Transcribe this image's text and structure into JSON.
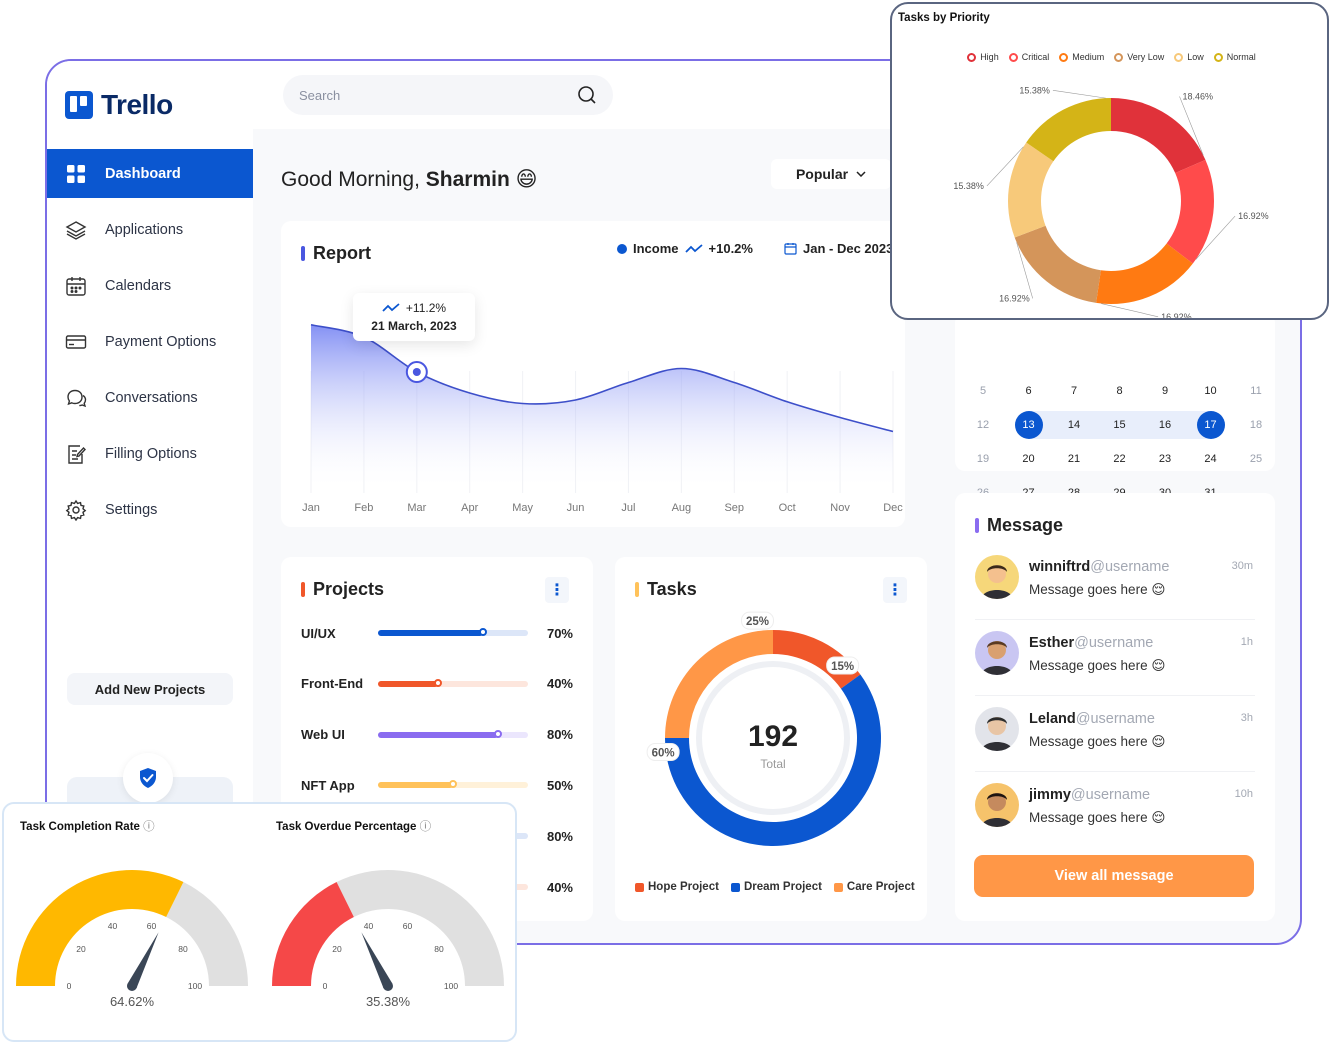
{
  "app": {
    "name": "Trello"
  },
  "sidebar": {
    "items": [
      {
        "label": "Dashboard",
        "icon": "grid-icon"
      },
      {
        "label": "Applications",
        "icon": "layers-icon"
      },
      {
        "label": "Calendars",
        "icon": "calendar-icon"
      },
      {
        "label": "Payment Options",
        "icon": "credit-card-icon"
      },
      {
        "label": "Conversations",
        "icon": "chat-icon"
      },
      {
        "label": "Filling Options",
        "icon": "edit-document-icon"
      },
      {
        "label": "Settings",
        "icon": "gear-icon"
      }
    ],
    "add_project_label": "Add New Projects"
  },
  "header": {
    "search_placeholder": "Search",
    "greeting_prefix": "Good Morning,",
    "user_name": "Sharmin",
    "greeting_emoji": "😄",
    "sort_label": "Popular"
  },
  "report": {
    "title": "Report",
    "legend_label": "Income",
    "legend_change": "+10.2%",
    "date_range": "Jan - Dec 2023",
    "tooltip_change": "+11.2%",
    "tooltip_date": "21 March, 2023",
    "chart_data": {
      "type": "area",
      "x": [
        "Jan",
        "Feb",
        "Mar",
        "Apr",
        "May",
        "Jun",
        "Jul",
        "Aug",
        "Sep",
        "Oct",
        "Nov",
        "Dec"
      ],
      "series": [
        {
          "name": "Income",
          "values": [
            95,
            88,
            68,
            56,
            50,
            52,
            62,
            70,
            62,
            51,
            42,
            34
          ]
        }
      ],
      "ylim": [
        0,
        100
      ],
      "highlight_index": 2,
      "color": "#3d4fc9"
    }
  },
  "projects": {
    "title": "Projects",
    "items": [
      {
        "label": "UI/UX",
        "value": 70,
        "value_label": "70%",
        "color": "#0b57d0",
        "track": "#dce6f8"
      },
      {
        "label": "Front-End",
        "value": 40,
        "value_label": "40%",
        "color": "#f0572a",
        "track": "#fde6dd"
      },
      {
        "label": "Web UI",
        "value": 80,
        "value_label": "80%",
        "color": "#8a6cf0",
        "track": "#ebe6fd"
      },
      {
        "label": "NFT App",
        "value": 50,
        "value_label": "50%",
        "color": "#ffc25a",
        "track": "#fff1d9"
      },
      {
        "label": "",
        "value": 80,
        "value_label": "80%",
        "color": "#0b57d0",
        "track": "#dce6f8"
      },
      {
        "label": "",
        "value": 40,
        "value_label": "40%",
        "color": "#f0572a",
        "track": "#fde6dd"
      }
    ]
  },
  "tasks": {
    "title": "Tasks",
    "total_value": "192",
    "total_label": "Total",
    "chart_data": {
      "type": "pie",
      "categories": [
        "Hope Project",
        "Dream Project",
        "Care Project"
      ],
      "values": [
        15,
        60,
        25
      ],
      "value_labels": [
        "15%",
        "60%",
        "25%"
      ],
      "colors": [
        "#f0572a",
        "#0b57d0",
        "#ff9747"
      ]
    }
  },
  "calendar": {
    "weeks": [
      [
        "5",
        "6",
        "7",
        "8",
        "9",
        "10",
        "11"
      ],
      [
        "12",
        "13",
        "14",
        "15",
        "16",
        "17",
        "18"
      ],
      [
        "19",
        "20",
        "21",
        "22",
        "23",
        "24",
        "25"
      ],
      [
        "26",
        "27",
        "28",
        "29",
        "30",
        "31",
        ""
      ]
    ],
    "range_start": "13",
    "range_end": "17"
  },
  "messages": {
    "title": "Message",
    "items": [
      {
        "name": "winniftrd",
        "handle": "@username",
        "text": "Message goes here",
        "emoji": "😌",
        "time": "30m"
      },
      {
        "name": "Esther",
        "handle": "@username",
        "text": "Message goes here",
        "emoji": "😌",
        "time": "1h"
      },
      {
        "name": "Leland",
        "handle": "@username",
        "text": "Message goes here",
        "emoji": "😌",
        "time": "3h"
      },
      {
        "name": "jimmy",
        "handle": "@username",
        "text": "Message goes here",
        "emoji": "😌",
        "time": "10h"
      }
    ],
    "view_all_label": "View all message"
  },
  "priority_chart": {
    "title": "Tasks by Priority",
    "chart_data": {
      "type": "pie",
      "categories": [
        "High",
        "Critical",
        "Medium",
        "Very Low",
        "Low",
        "Normal"
      ],
      "values": [
        18.46,
        16.92,
        16.92,
        16.92,
        15.38,
        15.38
      ],
      "value_labels": [
        "18.46%",
        "16.92%",
        "16.92%",
        "16.92%",
        "15.38%",
        "15.38%"
      ],
      "colors": [
        "#e0323a",
        "#ff4b4b",
        "#ff7a12",
        "#d4955a",
        "#f7c97a",
        "#d4b417"
      ]
    }
  },
  "gauges": [
    {
      "title": "Task Completion Rate",
      "value": 64.62,
      "value_label": "64.62%",
      "color": "#ffb800",
      "ticks": [
        "0",
        "20",
        "40",
        "60",
        "80",
        "100"
      ]
    },
    {
      "title": "Task Overdue Percentage",
      "value": 35.38,
      "value_label": "35.38%",
      "color": "#f54848",
      "ticks": [
        "0",
        "20",
        "40",
        "60",
        "80",
        "100"
      ]
    }
  ]
}
